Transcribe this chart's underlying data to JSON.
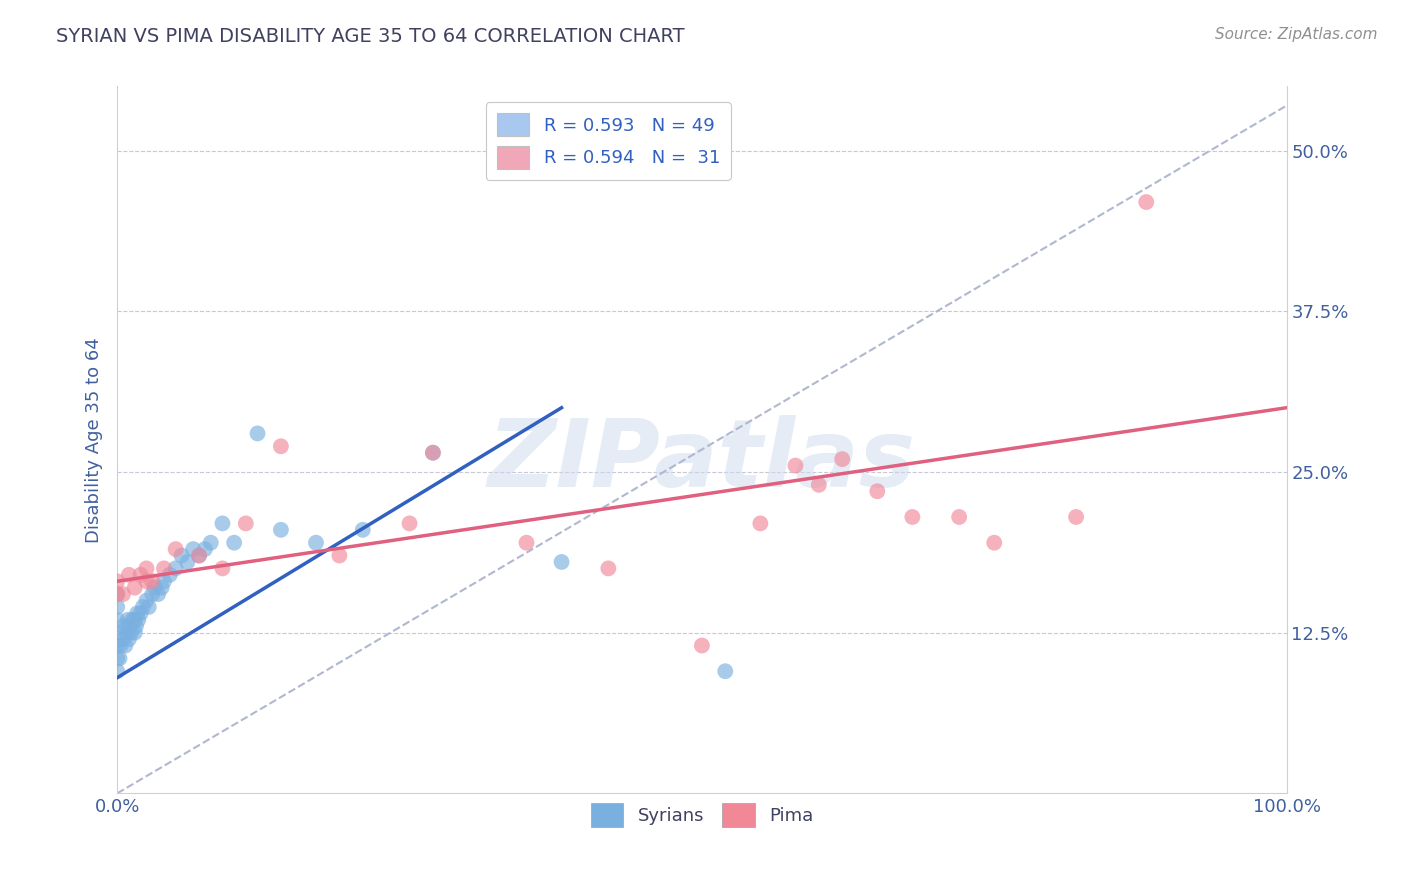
{
  "title": "SYRIAN VS PIMA DISABILITY AGE 35 TO 64 CORRELATION CHART",
  "source": "Source: ZipAtlas.com",
  "xlabel": "",
  "ylabel": "Disability Age 35 to 64",
  "xlim": [
    0.0,
    1.0
  ],
  "ylim": [
    0.0,
    0.55
  ],
  "xticks": [
    0.0,
    0.25,
    0.5,
    0.75,
    1.0
  ],
  "xticklabels": [
    "0.0%",
    "",
    "",
    "",
    "100.0%"
  ],
  "yticks": [
    0.125,
    0.25,
    0.375,
    0.5
  ],
  "yticklabels": [
    "12.5%",
    "25.0%",
    "37.5%",
    "50.0%"
  ],
  "legend_entries": [
    {
      "label": "R = 0.593   N = 49",
      "color": "#a8c8f0"
    },
    {
      "label": "R = 0.594   N =  31",
      "color": "#f0a8b8"
    }
  ],
  "syrians_x": [
    0.0,
    0.0,
    0.0,
    0.0,
    0.0,
    0.0,
    0.0,
    0.002,
    0.003,
    0.005,
    0.005,
    0.007,
    0.008,
    0.009,
    0.01,
    0.01,
    0.012,
    0.013,
    0.015,
    0.015,
    0.016,
    0.017,
    0.018,
    0.02,
    0.022,
    0.025,
    0.027,
    0.03,
    0.032,
    0.035,
    0.038,
    0.04,
    0.045,
    0.05,
    0.055,
    0.06,
    0.065,
    0.07,
    0.075,
    0.08,
    0.09,
    0.1,
    0.12,
    0.14,
    0.17,
    0.21,
    0.27,
    0.38,
    0.52
  ],
  "syrians_y": [
    0.095,
    0.105,
    0.115,
    0.125,
    0.135,
    0.145,
    0.155,
    0.105,
    0.115,
    0.12,
    0.13,
    0.115,
    0.125,
    0.135,
    0.12,
    0.13,
    0.125,
    0.135,
    0.125,
    0.135,
    0.13,
    0.14,
    0.135,
    0.14,
    0.145,
    0.15,
    0.145,
    0.155,
    0.16,
    0.155,
    0.16,
    0.165,
    0.17,
    0.175,
    0.185,
    0.18,
    0.19,
    0.185,
    0.19,
    0.195,
    0.21,
    0.195,
    0.28,
    0.205,
    0.195,
    0.205,
    0.265,
    0.18,
    0.095
  ],
  "pima_x": [
    0.0,
    0.0,
    0.005,
    0.01,
    0.015,
    0.02,
    0.025,
    0.025,
    0.03,
    0.04,
    0.05,
    0.07,
    0.09,
    0.11,
    0.14,
    0.19,
    0.25,
    0.27,
    0.35,
    0.42,
    0.5,
    0.55,
    0.58,
    0.6,
    0.62,
    0.65,
    0.68,
    0.72,
    0.75,
    0.82,
    0.88
  ],
  "pima_y": [
    0.155,
    0.165,
    0.155,
    0.17,
    0.16,
    0.17,
    0.165,
    0.175,
    0.165,
    0.175,
    0.19,
    0.185,
    0.175,
    0.21,
    0.27,
    0.185,
    0.21,
    0.265,
    0.195,
    0.175,
    0.115,
    0.21,
    0.255,
    0.24,
    0.26,
    0.235,
    0.215,
    0.215,
    0.195,
    0.215,
    0.46
  ],
  "blue_line_x": [
    0.0,
    0.38
  ],
  "blue_line_y": [
    0.09,
    0.3
  ],
  "pink_line_x": [
    0.0,
    1.0
  ],
  "pink_line_y": [
    0.165,
    0.3
  ],
  "dashed_line_x": [
    0.0,
    1.0
  ],
  "dashed_line_y": [
    0.0,
    0.535
  ],
  "scatter_color_syrians": "#7ab0e0",
  "scatter_color_pima": "#f08898",
  "line_color_syrians": "#3060c0",
  "line_color_pima": "#e06080",
  "dashed_color": "#b0b8d0",
  "watermark_text": "ZIPatlas",
  "title_color": "#404060",
  "axis_label_color": "#4060a0",
  "ytick_color": "#4060a0",
  "xtick_color": "#4060a0",
  "grid_color": "#c8c8d8",
  "background_color": "#ffffff"
}
